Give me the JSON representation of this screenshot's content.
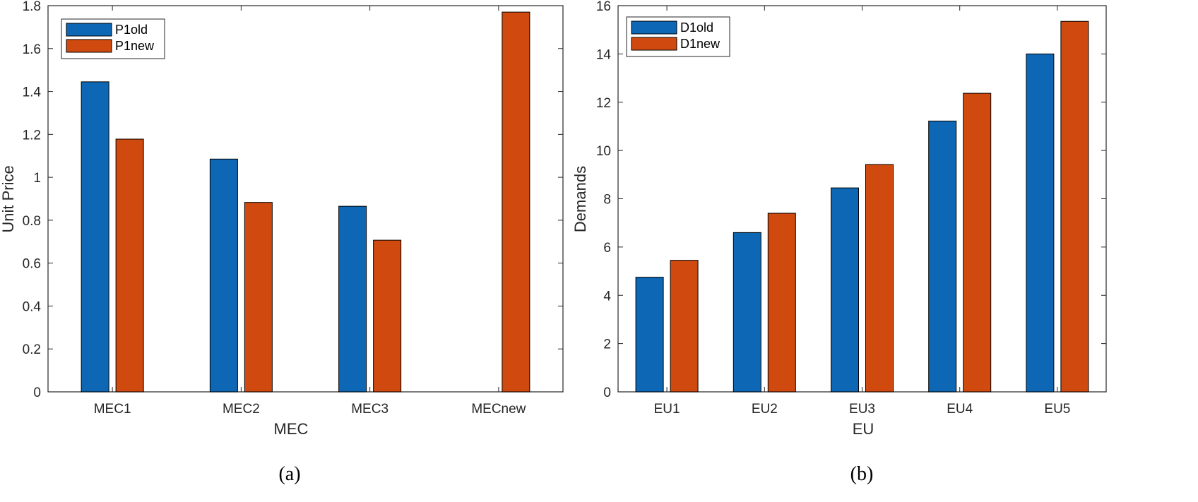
{
  "chart_data": [
    {
      "type": "bar",
      "caption": "(a)",
      "xlabel": "MEC",
      "ylabel": "Unit Price",
      "categories": [
        "MEC1",
        "MEC2",
        "MEC3",
        "MECnew"
      ],
      "series": [
        {
          "name": "P1old",
          "color": "#0e67b4",
          "values": [
            1.445,
            1.085,
            0.865,
            null
          ]
        },
        {
          "name": "P1new",
          "color": "#d04a0f",
          "values": [
            1.178,
            0.883,
            0.707,
            1.77
          ]
        }
      ],
      "ylim": [
        0,
        1.8
      ],
      "yticks": [
        0,
        0.2,
        0.4,
        0.6,
        0.8,
        1,
        1.2,
        1.4,
        1.6,
        1.8
      ],
      "ytick_labels": [
        "0",
        "0.2",
        "0.4",
        "0.6",
        "0.8",
        "1",
        "1.2",
        "1.4",
        "1.6",
        "1.8"
      ],
      "legend_position": "top-left",
      "grid": false
    },
    {
      "type": "bar",
      "caption": "(b)",
      "xlabel": "EU",
      "ylabel": "Demands",
      "categories": [
        "EU1",
        "EU2",
        "EU3",
        "EU4",
        "EU5"
      ],
      "series": [
        {
          "name": "D1old",
          "color": "#0e67b4",
          "values": [
            4.75,
            6.6,
            8.45,
            11.22,
            14.0
          ]
        },
        {
          "name": "D1new",
          "color": "#d04a0f",
          "values": [
            5.45,
            7.4,
            9.42,
            12.37,
            15.35
          ]
        }
      ],
      "ylim": [
        0,
        16
      ],
      "yticks": [
        0,
        2,
        4,
        6,
        8,
        10,
        12,
        14,
        16
      ],
      "ytick_labels": [
        "0",
        "2",
        "4",
        "6",
        "8",
        "10",
        "12",
        "14",
        "16"
      ],
      "legend_position": "top-left",
      "grid": false
    }
  ]
}
